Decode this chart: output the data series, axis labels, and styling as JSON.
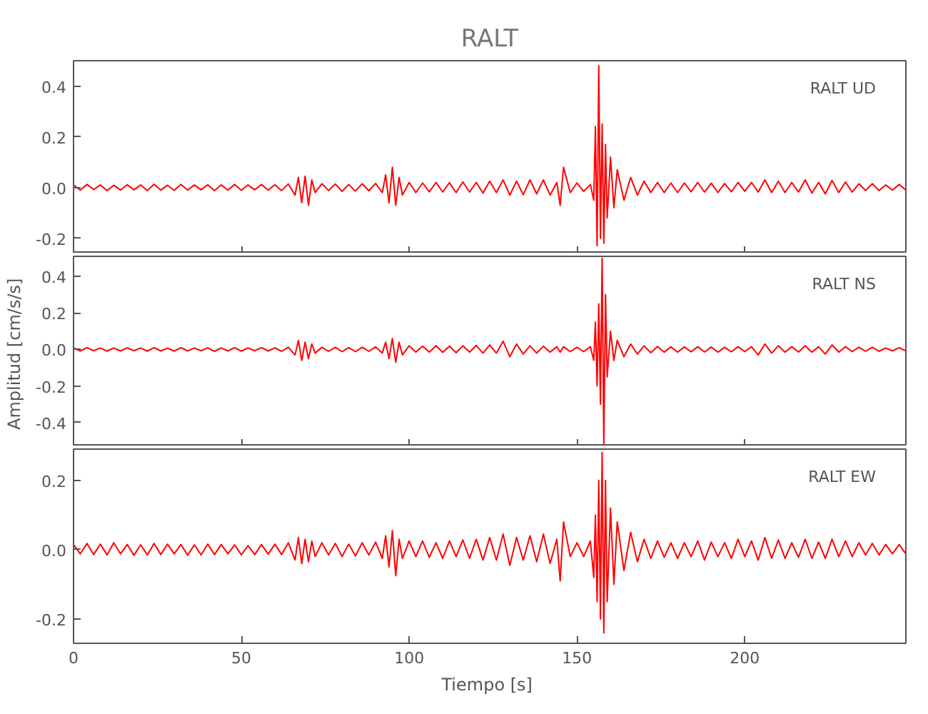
{
  "chart_data": [
    {
      "type": "line",
      "title": "RALT",
      "xlim": [
        0,
        248
      ],
      "xticks": [
        0,
        50,
        100,
        150,
        200
      ],
      "ylim": [
        -0.26,
        0.5
      ],
      "yticks": [
        {
          "value": -0.2,
          "label": "-0.2"
        },
        {
          "value": 0,
          "label": "0.0"
        },
        {
          "value": 0.2,
          "label": "0.2"
        },
        {
          "value": 0.4,
          "label": "0.4"
        }
      ],
      "tick_labels": "y",
      "grid": false,
      "marker": "none",
      "line_style": "solid",
      "x": [
        0,
        2,
        4,
        6,
        8,
        10,
        12,
        14,
        16,
        18,
        20,
        22,
        24,
        26,
        28,
        30,
        32,
        34,
        36,
        38,
        40,
        42,
        44,
        46,
        48,
        50,
        52,
        54,
        56,
        58,
        60,
        62,
        64,
        66,
        67,
        68,
        69,
        70,
        71,
        72,
        74,
        76,
        78,
        80,
        82,
        84,
        86,
        88,
        90,
        92,
        93,
        94,
        95,
        96,
        97,
        98,
        100,
        102,
        104,
        106,
        108,
        110,
        112,
        114,
        116,
        118,
        120,
        122,
        124,
        126,
        128,
        130,
        132,
        134,
        136,
        138,
        140,
        142,
        144,
        145,
        146,
        148,
        150,
        152,
        154,
        155,
        155.5,
        156,
        156.5,
        157,
        157.5,
        158,
        158.5,
        159,
        160,
        161,
        162,
        164,
        166,
        168,
        170,
        172,
        174,
        176,
        178,
        180,
        182,
        184,
        186,
        188,
        190,
        192,
        194,
        196,
        198,
        200,
        202,
        204,
        206,
        208,
        210,
        212,
        214,
        216,
        218,
        220,
        222,
        224,
        226,
        228,
        230,
        232,
        234,
        236,
        238,
        240,
        242,
        244,
        246,
        248
      ],
      "series": [
        {
          "name": "RALT   UD",
          "color": "#ff0000",
          "values": [
            0.01,
            -0.01,
            0.012,
            -0.008,
            0.01,
            -0.012,
            0.009,
            -0.01,
            0.011,
            -0.009,
            0.01,
            -0.012,
            0.013,
            -0.01,
            0.009,
            -0.011,
            0.012,
            -0.01,
            0.01,
            -0.009,
            0.011,
            -0.012,
            0.01,
            -0.01,
            0.012,
            -0.011,
            0.01,
            -0.009,
            0.012,
            -0.01,
            0.011,
            -0.012,
            0.014,
            -0.03,
            0.04,
            -0.06,
            0.045,
            -0.07,
            0.03,
            -0.02,
            0.015,
            -0.012,
            0.014,
            -0.015,
            0.012,
            -0.014,
            0.015,
            -0.013,
            0.016,
            -0.02,
            0.05,
            -0.06,
            0.08,
            -0.07,
            0.04,
            -0.03,
            0.02,
            -0.02,
            0.018,
            -0.017,
            0.02,
            -0.018,
            0.019,
            -0.02,
            0.022,
            -0.018,
            0.02,
            -0.022,
            0.025,
            -0.02,
            0.03,
            -0.03,
            0.025,
            -0.028,
            0.03,
            -0.025,
            0.03,
            -0.03,
            0.02,
            -0.07,
            0.08,
            -0.02,
            0.018,
            -0.015,
            0.012,
            -0.05,
            0.24,
            -0.23,
            0.48,
            -0.2,
            0.25,
            -0.22,
            0.17,
            -0.12,
            0.12,
            -0.08,
            0.07,
            -0.05,
            0.04,
            -0.03,
            0.025,
            -0.02,
            0.02,
            -0.02,
            0.018,
            -0.02,
            0.018,
            -0.017,
            0.02,
            -0.018,
            0.017,
            -0.02,
            0.016,
            -0.017,
            0.02,
            -0.015,
            0.02,
            -0.018,
            0.03,
            -0.02,
            0.025,
            -0.02,
            0.02,
            -0.018,
            0.03,
            -0.022,
            0.02,
            -0.025,
            0.028,
            -0.02,
            0.022,
            -0.018,
            0.015,
            -0.012,
            0.015,
            -0.012,
            0.01,
            -0.01,
            0.012,
            -0.01
          ]
        }
      ]
    },
    {
      "type": "line",
      "ylabel": "Amplitud  [cm/s/s]",
      "xlim": [
        0,
        248
      ],
      "xticks": [
        0,
        50,
        100,
        150,
        200
      ],
      "ylim": [
        -0.53,
        0.51
      ],
      "yticks": [
        {
          "value": -0.4,
          "label": "-0.4"
        },
        {
          "value": -0.2,
          "label": "-0.2"
        },
        {
          "value": 0,
          "label": "0.0"
        },
        {
          "value": 0.2,
          "label": "0.2"
        },
        {
          "value": 0.4,
          "label": "0.4"
        }
      ],
      "tick_labels": "y",
      "grid": false,
      "marker": "none",
      "line_style": "solid",
      "x": [
        0,
        2,
        4,
        6,
        8,
        10,
        12,
        14,
        16,
        18,
        20,
        22,
        24,
        26,
        28,
        30,
        32,
        34,
        36,
        38,
        40,
        42,
        44,
        46,
        48,
        50,
        52,
        54,
        56,
        58,
        60,
        62,
        64,
        66,
        67,
        68,
        69,
        70,
        71,
        72,
        74,
        76,
        78,
        80,
        82,
        84,
        86,
        88,
        90,
        92,
        93,
        94,
        95,
        96,
        97,
        98,
        100,
        102,
        104,
        106,
        108,
        110,
        112,
        114,
        116,
        118,
        120,
        122,
        124,
        126,
        128,
        130,
        132,
        134,
        136,
        138,
        140,
        142,
        144,
        145,
        146,
        148,
        150,
        152,
        154,
        155,
        155.5,
        156,
        156.5,
        157,
        157.5,
        158,
        158.5,
        159,
        160,
        161,
        162,
        164,
        166,
        168,
        170,
        172,
        174,
        176,
        178,
        180,
        182,
        184,
        186,
        188,
        190,
        192,
        194,
        196,
        198,
        200,
        202,
        204,
        206,
        208,
        210,
        212,
        214,
        216,
        218,
        220,
        222,
        224,
        226,
        228,
        230,
        232,
        234,
        236,
        238,
        240,
        242,
        244,
        246,
        248
      ],
      "series": [
        {
          "name": "RALT   NS",
          "color": "#ff0000",
          "values": [
            0.008,
            -0.008,
            0.01,
            -0.007,
            0.008,
            -0.009,
            0.008,
            -0.008,
            0.009,
            -0.007,
            0.008,
            -0.009,
            0.01,
            -0.008,
            0.007,
            -0.009,
            0.01,
            -0.008,
            0.008,
            -0.007,
            0.009,
            -0.01,
            0.008,
            -0.008,
            0.01,
            -0.009,
            0.008,
            -0.007,
            0.01,
            -0.008,
            0.009,
            -0.01,
            0.012,
            -0.03,
            0.05,
            -0.06,
            0.04,
            -0.05,
            0.03,
            -0.02,
            0.012,
            -0.01,
            0.012,
            -0.012,
            0.01,
            -0.012,
            0.012,
            -0.01,
            0.014,
            -0.02,
            0.04,
            -0.05,
            0.06,
            -0.07,
            0.04,
            -0.03,
            0.02,
            -0.015,
            0.018,
            -0.015,
            0.02,
            -0.016,
            0.018,
            -0.018,
            0.02,
            -0.015,
            0.022,
            -0.02,
            0.025,
            -0.02,
            0.045,
            -0.04,
            0.03,
            -0.025,
            0.02,
            -0.02,
            0.018,
            -0.015,
            0.015,
            -0.015,
            0.015,
            -0.012,
            0.012,
            -0.012,
            0.015,
            -0.06,
            0.15,
            -0.2,
            0.25,
            -0.3,
            0.5,
            -0.52,
            0.3,
            -0.15,
            0.1,
            -0.06,
            0.05,
            -0.04,
            0.03,
            -0.025,
            0.02,
            -0.018,
            0.016,
            -0.015,
            0.014,
            -0.015,
            0.014,
            -0.013,
            0.015,
            -0.014,
            0.013,
            -0.015,
            0.012,
            -0.013,
            0.015,
            -0.012,
            0.015,
            -0.03,
            0.03,
            -0.02,
            0.02,
            -0.015,
            0.015,
            -0.014,
            0.02,
            -0.015,
            0.015,
            -0.025,
            0.025,
            -0.015,
            0.015,
            -0.012,
            0.012,
            -0.01,
            0.012,
            -0.01,
            0.008,
            -0.008,
            0.01,
            -0.008
          ]
        }
      ]
    },
    {
      "type": "line",
      "xlabel": "Tiempo  [s]",
      "xlim": [
        0,
        248
      ],
      "xticks": [
        0,
        50,
        100,
        150,
        200
      ],
      "ylim": [
        -0.27,
        0.29
      ],
      "yticks": [
        {
          "value": -0.2,
          "label": "-0.2"
        },
        {
          "value": 0,
          "label": "0.0"
        },
        {
          "value": 0.2,
          "label": "0.2"
        }
      ],
      "grid": false,
      "marker": "none",
      "line_style": "solid",
      "x": [
        0,
        2,
        4,
        6,
        8,
        10,
        12,
        14,
        16,
        18,
        20,
        22,
        24,
        26,
        28,
        30,
        32,
        34,
        36,
        38,
        40,
        42,
        44,
        46,
        48,
        50,
        52,
        54,
        56,
        58,
        60,
        62,
        64,
        66,
        67,
        68,
        69,
        70,
        71,
        72,
        74,
        76,
        78,
        80,
        82,
        84,
        86,
        88,
        90,
        92,
        93,
        94,
        95,
        96,
        97,
        98,
        100,
        102,
        104,
        106,
        108,
        110,
        112,
        114,
        116,
        118,
        120,
        122,
        124,
        126,
        128,
        130,
        132,
        134,
        136,
        138,
        140,
        142,
        144,
        145,
        146,
        148,
        150,
        152,
        154,
        155,
        155.5,
        156,
        156.5,
        157,
        157.5,
        158,
        158.5,
        159,
        160,
        161,
        162,
        164,
        166,
        168,
        170,
        172,
        174,
        176,
        178,
        180,
        182,
        184,
        186,
        188,
        190,
        192,
        194,
        196,
        198,
        200,
        202,
        204,
        206,
        208,
        210,
        212,
        214,
        216,
        218,
        220,
        222,
        224,
        226,
        228,
        230,
        232,
        234,
        236,
        238,
        240,
        242,
        244,
        246,
        248
      ],
      "series": [
        {
          "name": "RALT   EW",
          "color": "#ff0000",
          "values": [
            0.015,
            -0.012,
            0.018,
            -0.014,
            0.016,
            -0.015,
            0.02,
            -0.012,
            0.015,
            -0.016,
            0.014,
            -0.015,
            0.018,
            -0.014,
            0.016,
            -0.012,
            0.015,
            -0.016,
            0.014,
            -0.015,
            0.016,
            -0.014,
            0.015,
            -0.012,
            0.014,
            -0.015,
            0.012,
            -0.014,
            0.015,
            -0.013,
            0.016,
            -0.014,
            0.02,
            -0.03,
            0.035,
            -0.04,
            0.03,
            -0.035,
            0.025,
            -0.02,
            0.02,
            -0.015,
            0.018,
            -0.02,
            0.016,
            -0.018,
            0.02,
            -0.015,
            0.022,
            -0.025,
            0.04,
            -0.05,
            0.055,
            -0.075,
            0.03,
            -0.025,
            0.025,
            -0.02,
            0.025,
            -0.022,
            0.02,
            -0.025,
            0.025,
            -0.02,
            0.028,
            -0.025,
            0.03,
            -0.03,
            0.035,
            -0.03,
            0.045,
            -0.045,
            0.035,
            -0.03,
            0.04,
            -0.035,
            0.045,
            -0.04,
            0.03,
            -0.09,
            0.08,
            -0.02,
            0.02,
            -0.02,
            0.025,
            -0.08,
            0.1,
            -0.15,
            0.2,
            -0.2,
            0.28,
            -0.24,
            0.2,
            -0.15,
            0.12,
            -0.1,
            0.08,
            -0.06,
            0.05,
            -0.035,
            0.03,
            -0.025,
            0.025,
            -0.022,
            0.02,
            -0.025,
            0.02,
            -0.02,
            0.025,
            -0.03,
            0.022,
            -0.02,
            0.02,
            -0.025,
            0.03,
            -0.02,
            0.025,
            -0.03,
            0.035,
            -0.025,
            0.028,
            -0.025,
            0.02,
            -0.022,
            0.03,
            -0.025,
            0.022,
            -0.025,
            0.03,
            -0.02,
            0.025,
            -0.02,
            0.02,
            -0.015,
            0.018,
            -0.015,
            0.015,
            -0.012,
            0.015,
            -0.012
          ]
        }
      ]
    }
  ]
}
